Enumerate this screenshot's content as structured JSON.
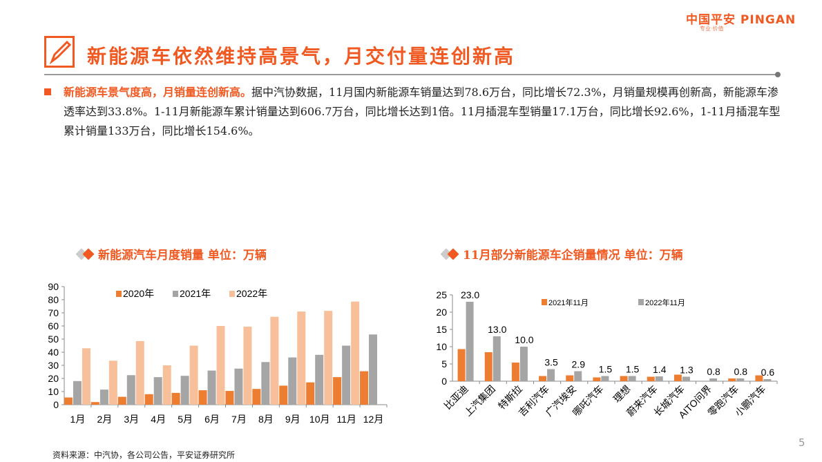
{
  "logo": {
    "cn": "中国平安",
    "en": "PINGAN",
    "slogan": "专业·价值"
  },
  "title": "新能源车依然维持高景气，月交付量连创新高",
  "body": {
    "highlight": "新能源车景气度高，月销量连创新高。",
    "text": "据中汽协数据，11月国内新能源车销量达到78.6万台，同比增长72.3%，月销量规模再创新高，新能源车渗透率达到33.8%。1-11月新能源车累计销量达到606.7万台，同比增长达到1倍。11月插混车型销量17.1万台，同比增长92.6%，1-11月插混车型累计销量133万台，同比增长154.6%。"
  },
  "colors": {
    "orange": "#ED7D31",
    "gray": "#A5A5A5",
    "peach": "#F8C09A"
  },
  "chart_data": [
    {
      "type": "bar",
      "title": "新能源汽车月度销量  单位：万辆",
      "categories": [
        "1月",
        "2月",
        "3月",
        "4月",
        "5月",
        "6月",
        "7月",
        "8月",
        "9月",
        "10月",
        "11月",
        "12月"
      ],
      "series": [
        {
          "name": "2020年",
          "values": [
            5.5,
            2.0,
            6.0,
            8.0,
            9.0,
            11.0,
            10.5,
            12.0,
            14.5,
            17.0,
            21.0,
            25.5
          ]
        },
        {
          "name": "2021年",
          "values": [
            18.0,
            11.5,
            22.5,
            21.0,
            22.0,
            26.0,
            27.5,
            32.5,
            36.0,
            38.0,
            45.0,
            53.5
          ]
        },
        {
          "name": "2022年",
          "values": [
            43.0,
            33.5,
            48.5,
            30.0,
            45.0,
            60.0,
            59.5,
            67.0,
            71.0,
            71.5,
            78.6,
            null
          ]
        }
      ],
      "ylim": [
        0,
        90
      ],
      "yticks": [
        0,
        10,
        20,
        30,
        40,
        50,
        60,
        70,
        80,
        90
      ],
      "legend": "top"
    },
    {
      "type": "bar",
      "title": "11月部分新能源车企销量情况  单位：万辆",
      "categories": [
        "比亚迪",
        "上汽集团",
        "特斯拉",
        "吉利汽车",
        "广汽埃安",
        "哪吒汽车",
        "理想",
        "蔚来汽车",
        "长城汽车",
        "AITO问界",
        "零跑汽车",
        "小鹏汽车"
      ],
      "series": [
        {
          "name": "2021年11月",
          "values": [
            9.3,
            8.4,
            5.4,
            1.5,
            1.7,
            1.1,
            1.5,
            1.3,
            1.9,
            0,
            0.8,
            1.7
          ]
        },
        {
          "name": "2022年11月",
          "values": [
            23.0,
            13.0,
            10.0,
            3.5,
            2.9,
            1.5,
            1.5,
            1.4,
            1.3,
            0.8,
            0.8,
            0.6
          ]
        }
      ],
      "data_labels": [
        "23.0",
        "13.0",
        "10.0",
        "3.5",
        "2.9",
        "1.5",
        "1.5",
        "1.4",
        "1.3",
        "0.8",
        "0.8",
        "0.6"
      ],
      "ylim": [
        0,
        25
      ],
      "yticks": [
        0,
        5,
        10,
        15,
        20,
        25
      ],
      "legend": "top"
    }
  ],
  "source": "资料来源：中汽协，各公司公告，平安证券研究所",
  "page": "5"
}
